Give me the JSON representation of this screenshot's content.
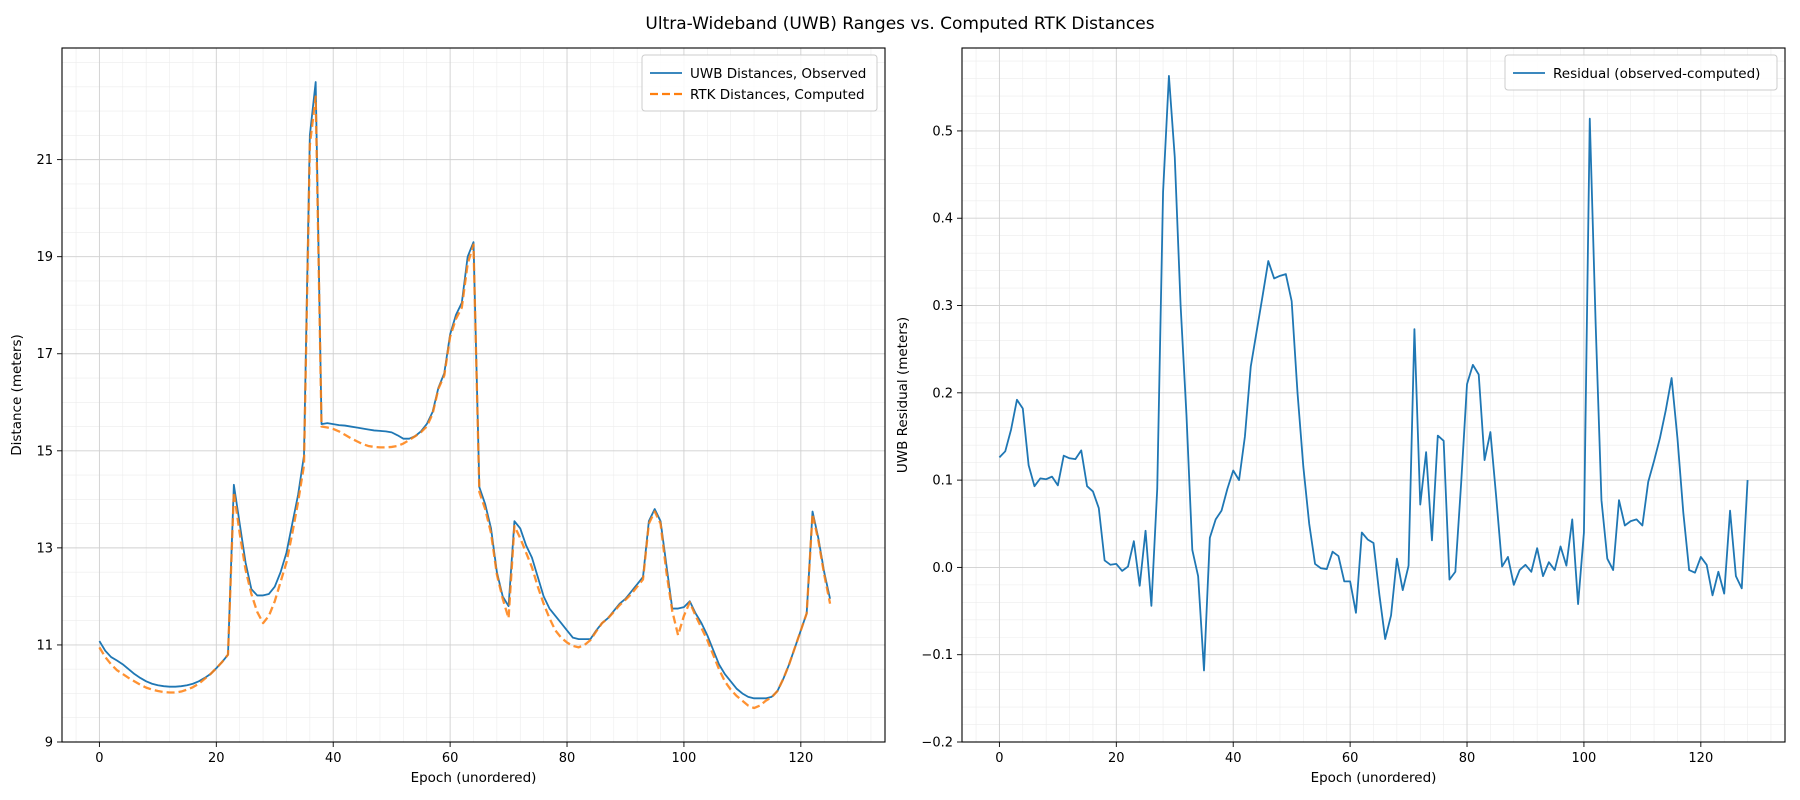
{
  "figure_title": "Ultra-Wideband (UWB) Ranges vs. Computed RTK Distances",
  "chart_data": [
    {
      "type": "line",
      "title": "",
      "xlabel": "Epoch (unordered)",
      "ylabel": "Distance (meters)",
      "xlim": [
        -6.4,
        134.4
      ],
      "ylim": [
        9,
        23.3
      ],
      "xticks": [
        0,
        20,
        40,
        60,
        80,
        100,
        120
      ],
      "yticks": [
        9,
        11,
        13,
        15,
        17,
        19,
        21
      ],
      "grid": true,
      "legend_position": "top-right",
      "series": [
        {
          "name": "UWB Distances, Observed",
          "color": "#1f77b4",
          "style": "solid",
          "values": [
            11.08,
            10.88,
            10.75,
            10.68,
            10.6,
            10.5,
            10.4,
            10.32,
            10.25,
            10.2,
            10.17,
            10.15,
            10.14,
            10.14,
            10.15,
            10.17,
            10.2,
            10.25,
            10.32,
            10.4,
            10.52,
            10.65,
            10.8,
            14.3,
            13.5,
            12.7,
            12.15,
            12.02,
            12.02,
            12.05,
            12.2,
            12.5,
            12.9,
            13.5,
            14.1,
            14.9,
            21.5,
            22.6,
            15.55,
            15.57,
            15.55,
            15.53,
            15.52,
            15.5,
            15.48,
            15.46,
            15.44,
            15.42,
            15.41,
            15.4,
            15.38,
            15.32,
            15.25,
            15.25,
            15.3,
            15.4,
            15.55,
            15.8,
            16.3,
            16.6,
            17.4,
            17.8,
            18.05,
            19.0,
            19.3,
            14.25,
            13.9,
            13.4,
            12.5,
            12.0,
            11.8,
            13.55,
            13.4,
            13.05,
            12.8,
            12.4,
            12.0,
            11.75,
            11.6,
            11.45,
            11.3,
            11.15,
            11.12,
            11.12,
            11.12,
            11.3,
            11.45,
            11.55,
            11.7,
            11.85,
            11.95,
            12.1,
            12.25,
            12.4,
            13.55,
            13.8,
            13.55,
            12.65,
            11.75,
            11.75,
            11.78,
            11.9,
            11.65,
            11.45,
            11.2,
            10.9,
            10.6,
            10.4,
            10.25,
            10.1,
            10.0,
            9.93,
            9.9,
            9.9,
            9.9,
            9.93,
            10.05,
            10.3,
            10.6,
            10.95,
            11.3,
            11.65,
            13.75,
            13.2,
            12.5,
            11.95
          ]
        },
        {
          "name": "RTK Distances, Computed",
          "color": "#ff7f0e",
          "style": "dashed",
          "values": [
            10.95,
            10.75,
            10.6,
            10.48,
            10.4,
            10.32,
            10.25,
            10.18,
            10.12,
            10.08,
            10.05,
            10.03,
            10.02,
            10.02,
            10.04,
            10.08,
            10.13,
            10.2,
            10.3,
            10.4,
            10.52,
            10.65,
            10.8,
            14.15,
            13.3,
            12.55,
            12.05,
            11.68,
            11.45,
            11.6,
            11.9,
            12.3,
            12.7,
            13.3,
            13.95,
            14.7,
            21.3,
            22.3,
            15.5,
            15.48,
            15.45,
            15.4,
            15.33,
            15.26,
            15.2,
            15.14,
            15.1,
            15.08,
            15.07,
            15.07,
            15.08,
            15.1,
            15.15,
            15.22,
            15.3,
            15.38,
            15.5,
            15.76,
            16.28,
            16.55,
            17.35,
            17.72,
            17.95,
            18.85,
            19.25,
            14.15,
            13.8,
            13.3,
            12.45,
            11.95,
            11.55,
            13.45,
            13.2,
            12.9,
            12.6,
            12.2,
            11.85,
            11.55,
            11.3,
            11.15,
            11.05,
            10.98,
            10.95,
            11.0,
            11.1,
            11.28,
            11.45,
            11.55,
            11.68,
            11.82,
            11.93,
            12.05,
            12.2,
            12.35,
            13.5,
            13.75,
            13.5,
            12.5,
            11.7,
            11.2,
            11.6,
            11.88,
            11.6,
            11.35,
            11.1,
            10.8,
            10.5,
            10.25,
            10.08,
            9.95,
            9.85,
            9.75,
            9.7,
            9.75,
            9.85,
            9.92,
            10.05,
            10.3,
            10.6,
            10.95,
            11.3,
            11.65,
            13.7,
            13.15,
            12.45,
            11.85
          ]
        }
      ]
    },
    {
      "type": "line",
      "title": "",
      "xlabel": "Epoch (unordered)",
      "ylabel": "UWB Residual (meters)",
      "xlim": [
        -6.4,
        134.4
      ],
      "ylim": [
        -0.2,
        0.595
      ],
      "xticks": [
        0,
        20,
        40,
        60,
        80,
        100,
        120
      ],
      "yticks": [
        -0.2,
        -0.1,
        0.0,
        0.1,
        0.2,
        0.3,
        0.4,
        0.5
      ],
      "ytick_labels": [
        "−0.2",
        "−0.1",
        "0.0",
        "0.1",
        "0.2",
        "0.3",
        "0.4",
        "0.5"
      ],
      "grid": true,
      "legend_position": "top-right",
      "series": [
        {
          "name": "Residual (observed-computed)",
          "color": "#1f77b4",
          "style": "solid",
          "values": [
            0.126,
            0.133,
            0.158,
            0.192,
            0.182,
            0.117,
            0.093,
            0.102,
            0.101,
            0.104,
            0.094,
            0.128,
            0.125,
            0.124,
            0.134,
            0.093,
            0.087,
            0.068,
            0.008,
            0.003,
            0.004,
            -0.004,
            0.001,
            0.03,
            -0.021,
            0.042,
            -0.044,
            0.09,
            0.43,
            0.563,
            0.47,
            0.3,
            0.175,
            0.02,
            -0.01,
            -0.118,
            0.034,
            0.055,
            0.065,
            0.09,
            0.111,
            0.1,
            0.15,
            0.23,
            0.27,
            0.31,
            0.351,
            0.331,
            0.334,
            0.336,
            0.305,
            0.2,
            0.115,
            0.05,
            0.004,
            -0.001,
            -0.002,
            0.018,
            0.013,
            -0.016,
            -0.016,
            -0.052,
            0.04,
            0.032,
            0.028,
            -0.031,
            -0.082,
            -0.055,
            0.01,
            -0.026,
            0.002,
            0.273,
            0.072,
            0.132,
            0.031,
            0.151,
            0.145,
            -0.014,
            -0.005,
            0.097,
            0.21,
            0.232,
            0.221,
            0.123,
            0.155,
            0.08,
            0.001,
            0.012,
            -0.02,
            -0.003,
            0.003,
            -0.005,
            0.022,
            -0.01,
            0.006,
            -0.003,
            0.024,
            0.002,
            0.055,
            -0.042,
            0.04,
            0.514,
            0.28,
            0.077,
            0.01,
            -0.003,
            0.077,
            0.048,
            0.053,
            0.055,
            0.048,
            0.098,
            0.122,
            0.148,
            0.18,
            0.217,
            0.148,
            0.063,
            -0.003,
            -0.006,
            0.012,
            0.003,
            -0.032,
            -0.005,
            -0.03,
            0.065,
            -0.01,
            -0.024,
            0.1
          ]
        }
      ]
    }
  ]
}
